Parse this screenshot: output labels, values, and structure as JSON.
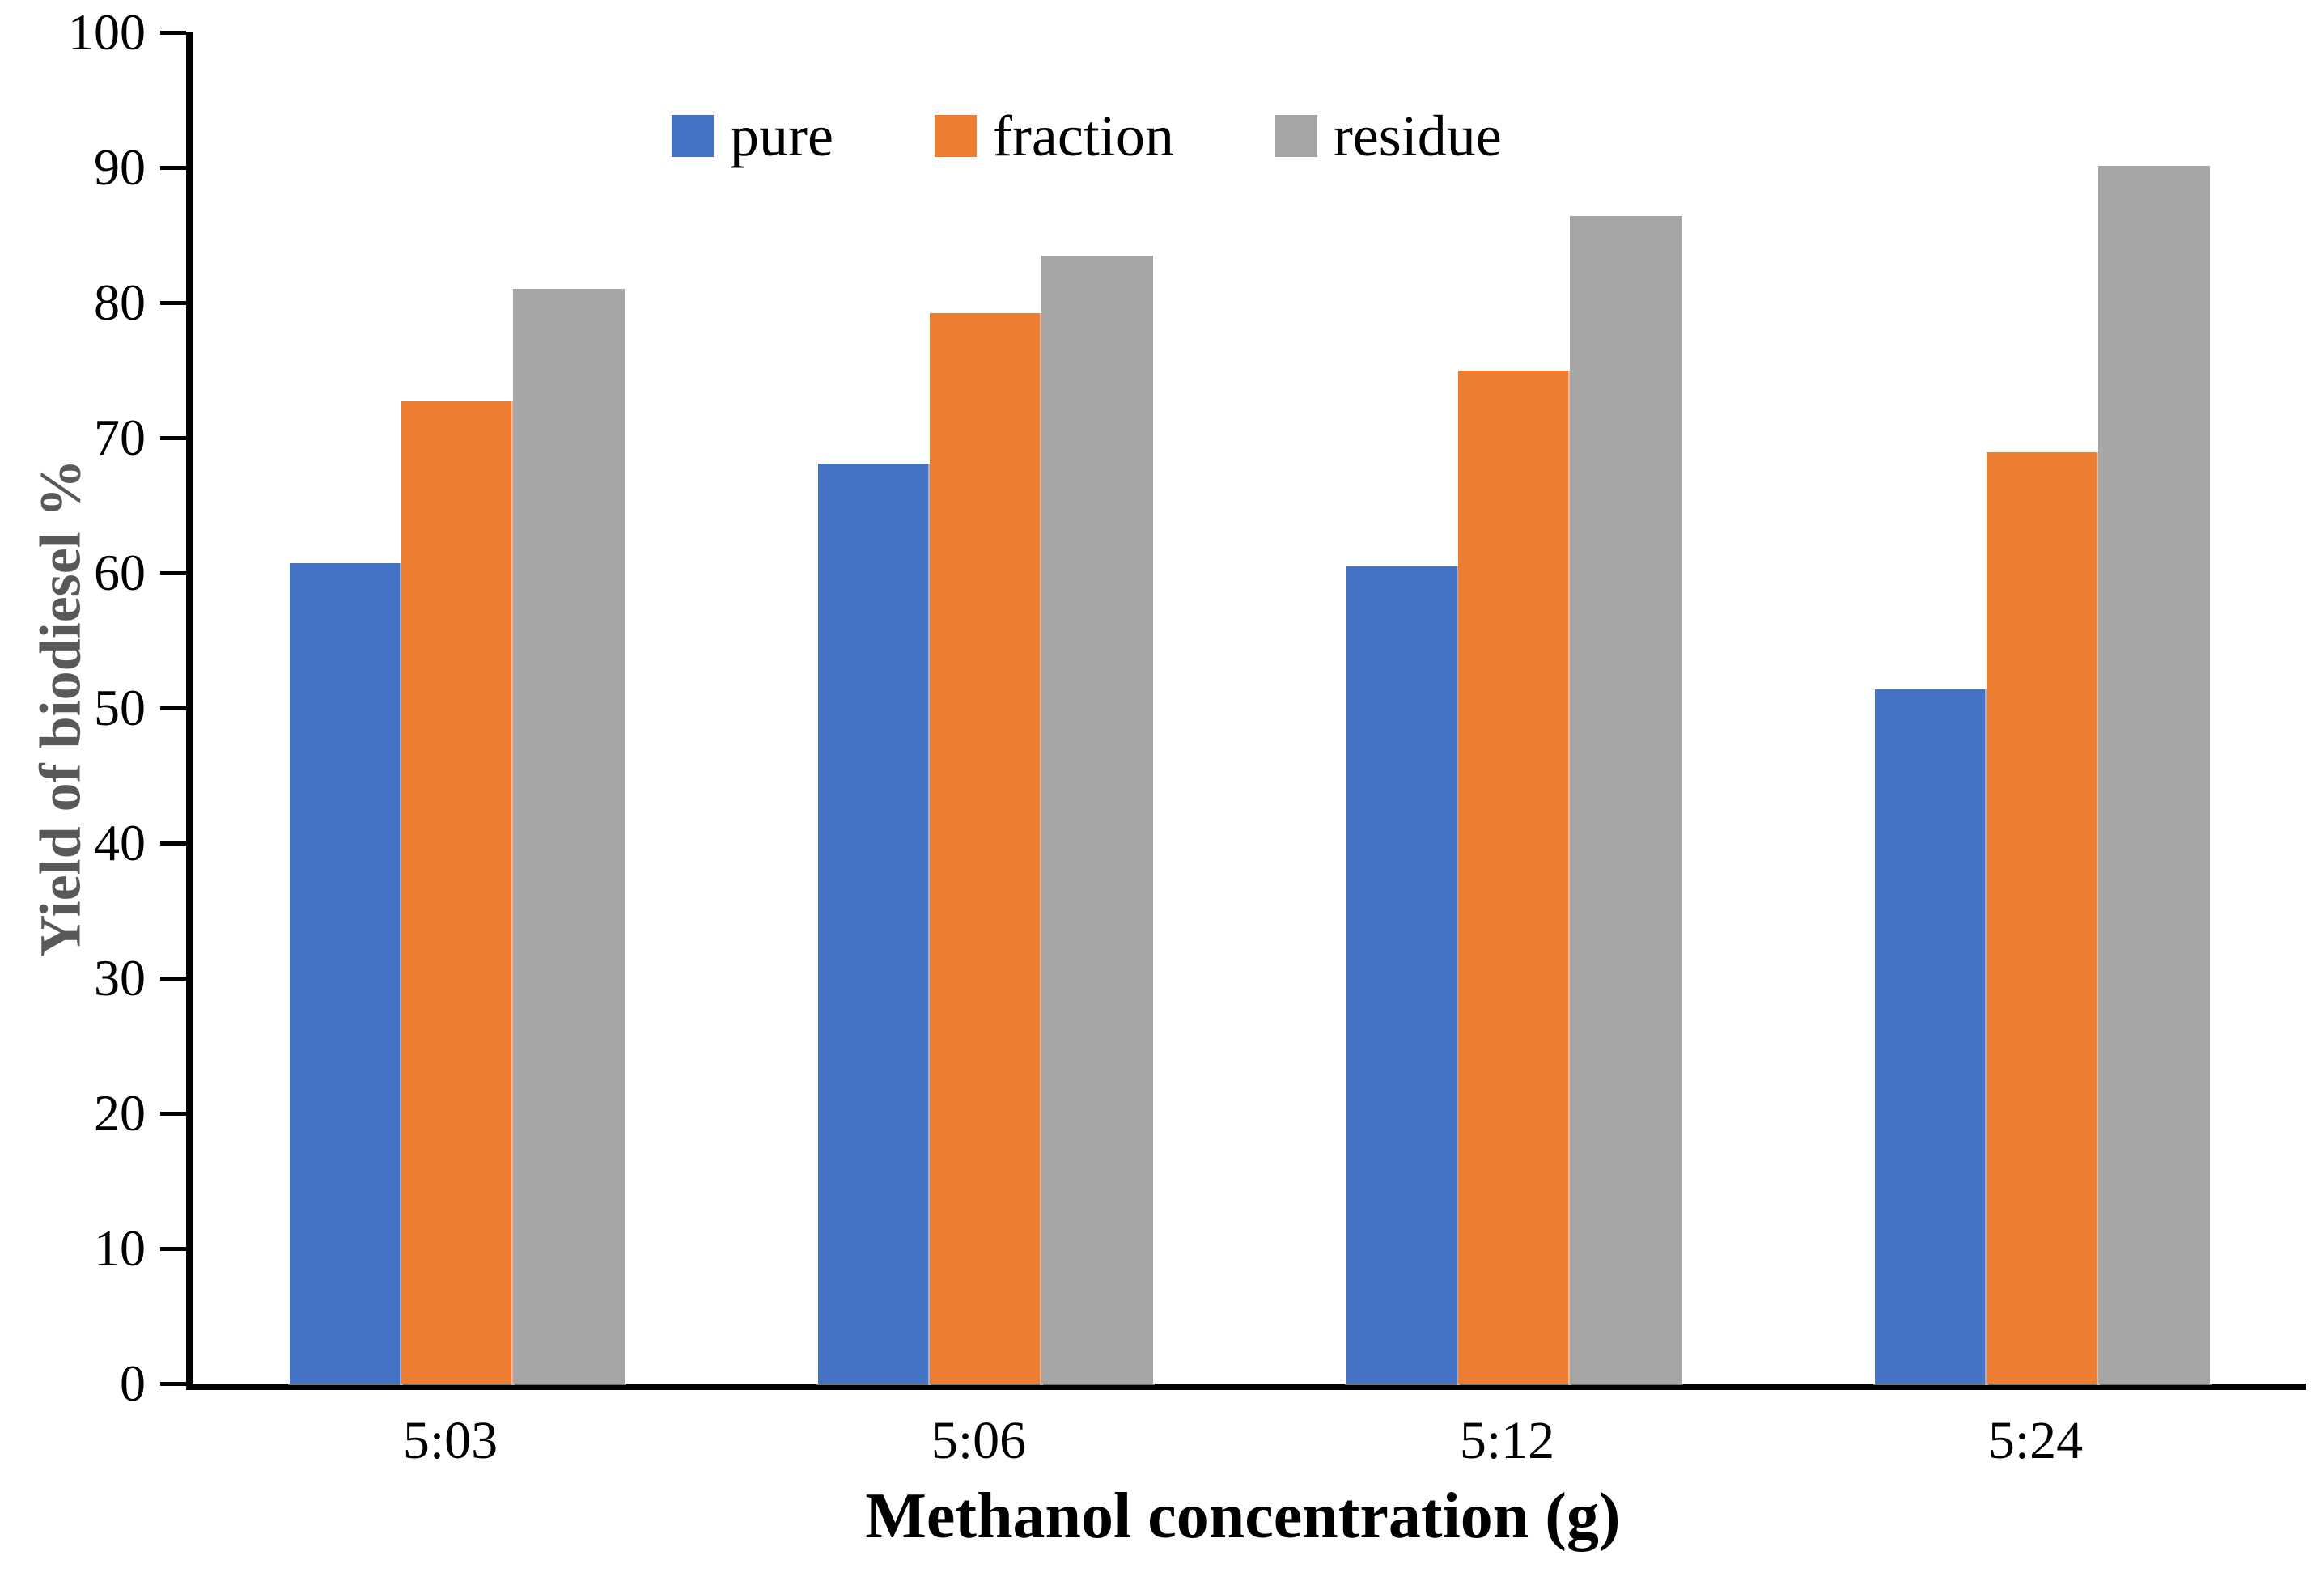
{
  "chart_data": {
    "type": "bar",
    "title": "",
    "categories": [
      "5:03",
      "5:06",
      "5:12",
      "5:24"
    ],
    "series": [
      {
        "name": "pure",
        "color": "#4472C4",
        "values": [
          60.7,
          68.1,
          60.5,
          51.4
        ]
      },
      {
        "name": "fraction",
        "color": "#ED7D31",
        "values": [
          72.7,
          79.2,
          75.0,
          68.9
        ]
      },
      {
        "name": "residue",
        "color": "#A5A5A5",
        "values": [
          81.0,
          83.5,
          86.4,
          90.1
        ]
      }
    ],
    "xlabel": "Methanol concentration (g)",
    "ylabel": "Yield of biodiesel %",
    "ylim": [
      0,
      100
    ],
    "y_ticks": [
      0,
      10,
      20,
      30,
      40,
      50,
      60,
      70,
      80,
      90,
      100
    ],
    "y_tick_labels": [
      "0",
      "10",
      "20",
      "30",
      "40",
      "50",
      "60",
      "70",
      "80",
      "90",
      "100"
    ],
    "grid": false,
    "legend_position": "top-center",
    "axis_color": "#000000",
    "xlabel_color": "#000000",
    "ylabel_color": "#595959",
    "background": "#ffffff"
  }
}
